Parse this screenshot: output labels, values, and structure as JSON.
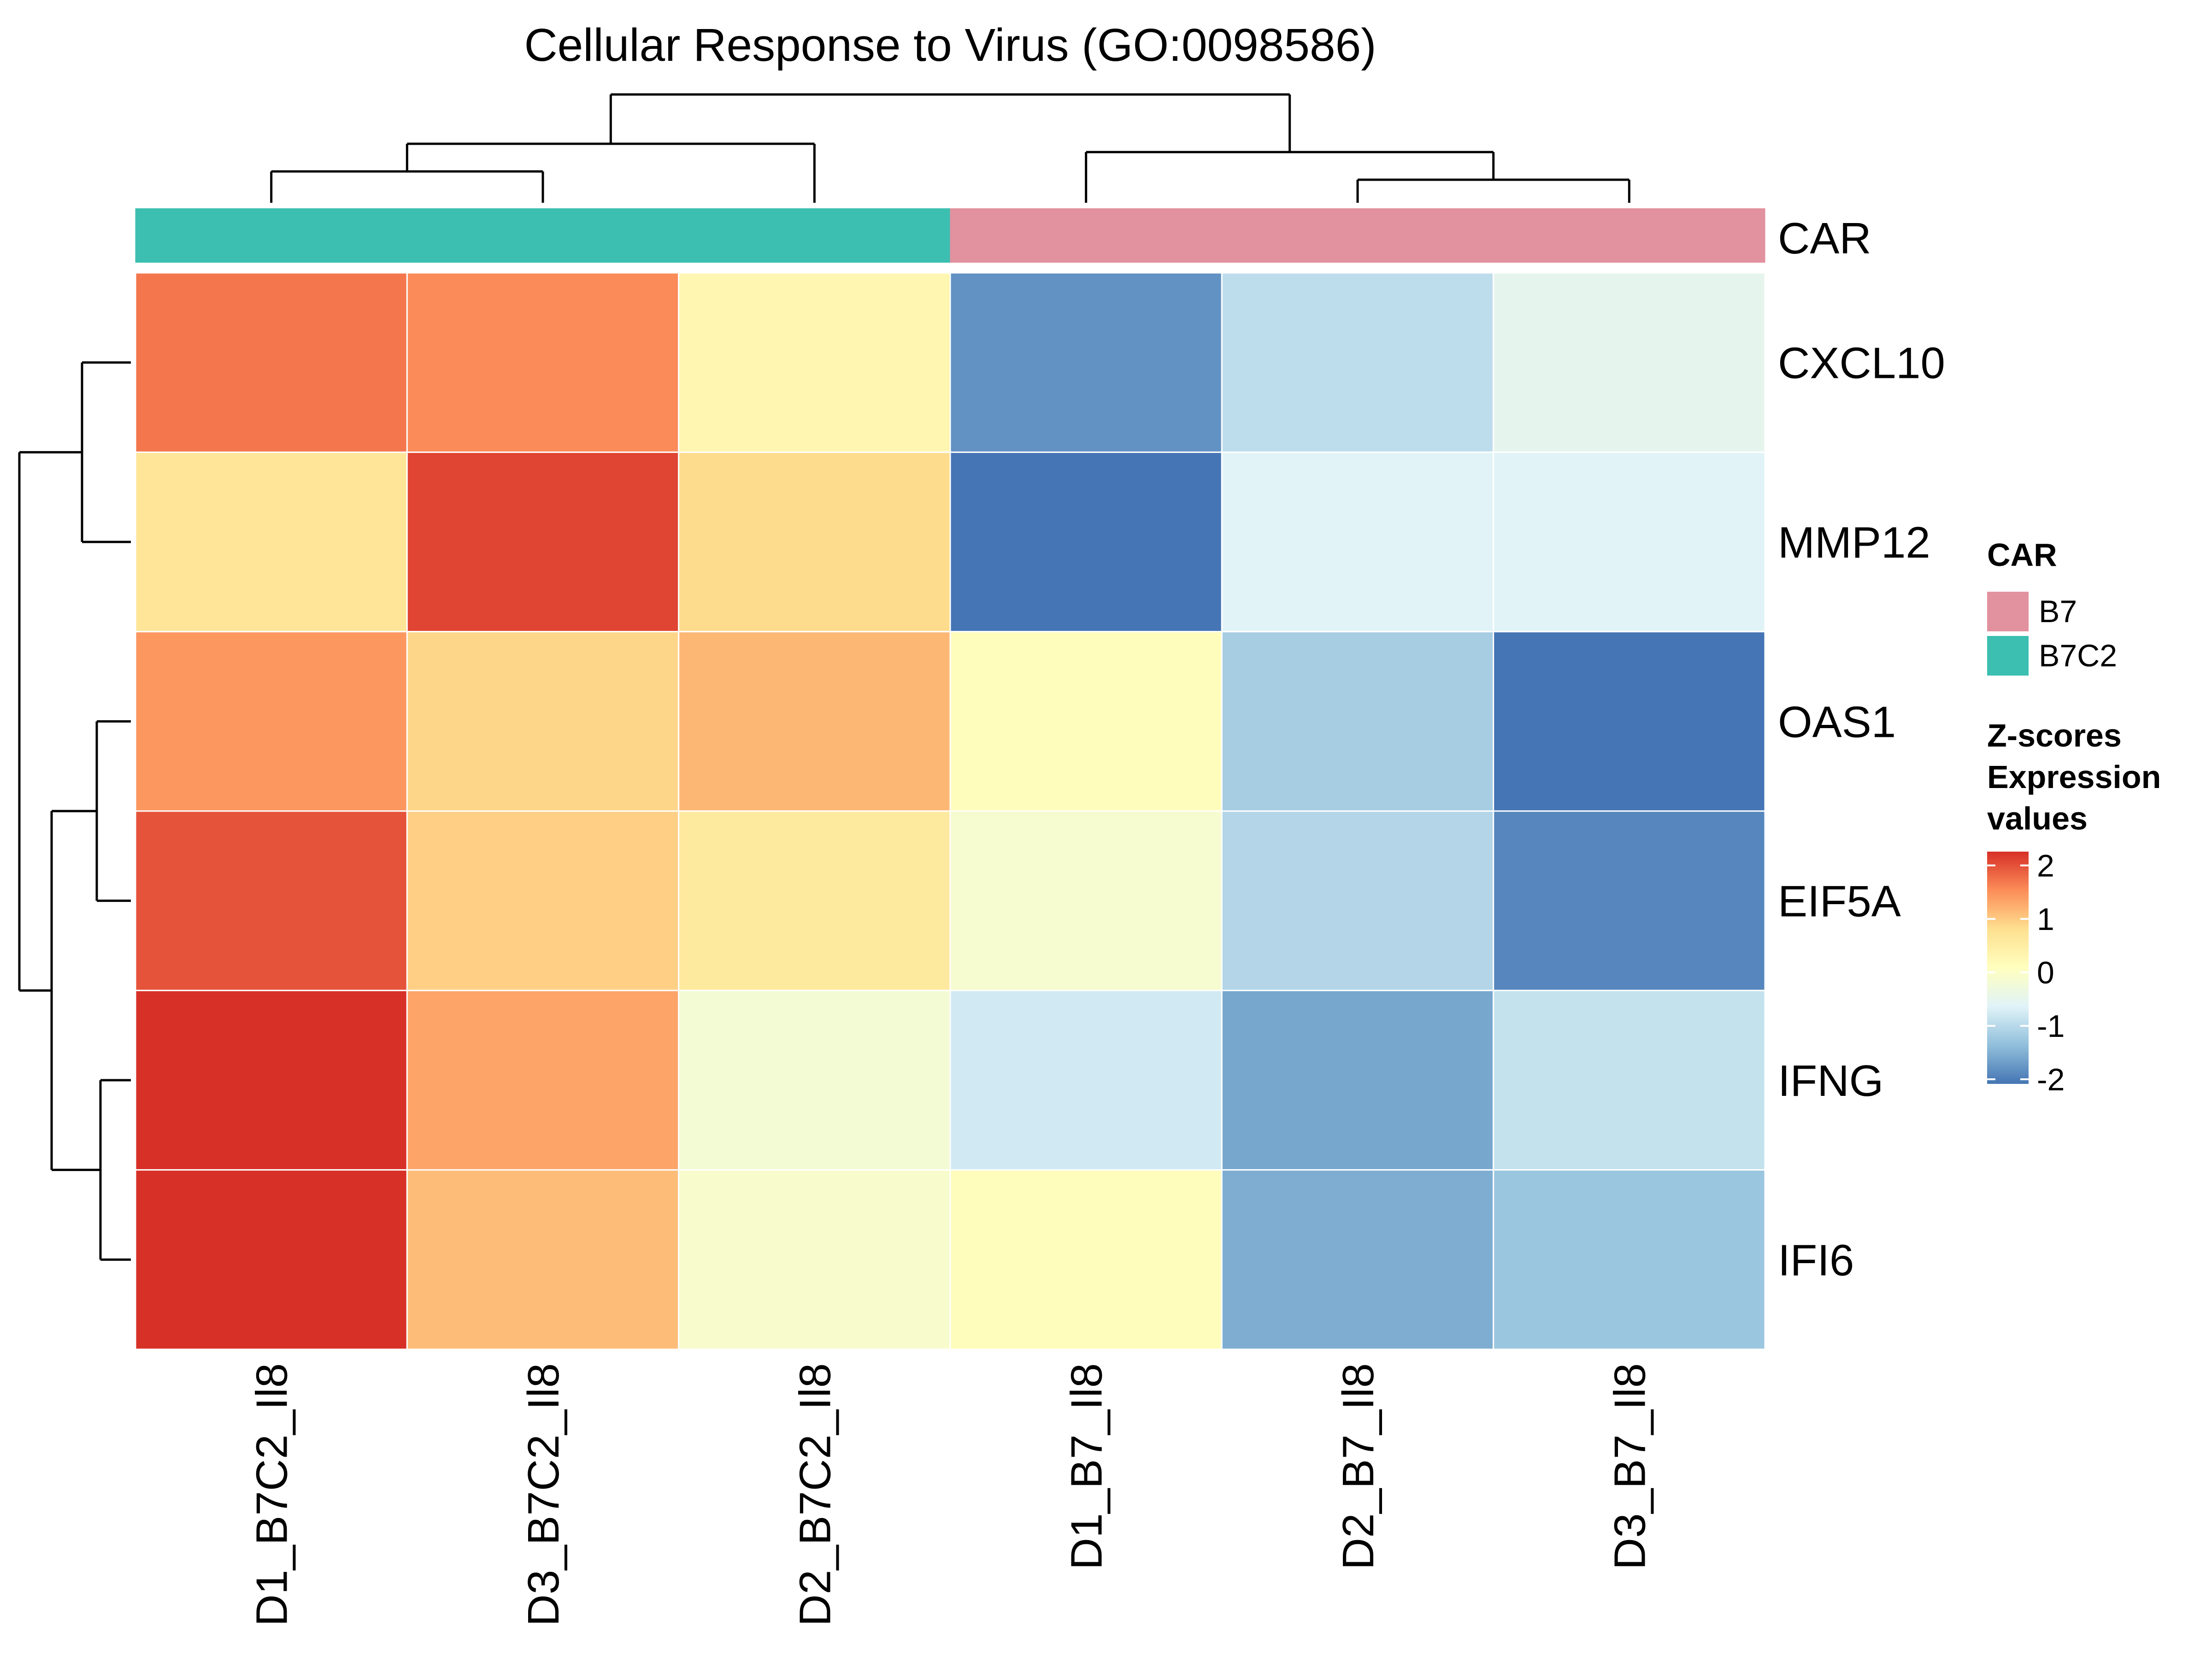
{
  "chart_data": {
    "type": "heatmap",
    "title": "Cellular Response to Virus (GO:0098586)",
    "rows": [
      "CXCL10",
      "MMP12",
      "OAS1",
      "EIF5A",
      "IFNG",
      "IFI6"
    ],
    "columns": [
      "D1_B7C2_Il8",
      "D3_B7C2_Il8",
      "D2_B7C2_Il8",
      "D1_B7_Il8",
      "D2_B7_Il8",
      "D3_B7_Il8"
    ],
    "values": [
      [
        1.5,
        1.35,
        0.2,
        -1.75,
        -0.95,
        -0.55
      ],
      [
        0.55,
        1.85,
        0.7,
        -2.0,
        -0.65,
        -0.65
      ],
      [
        1.25,
        0.75,
        1.0,
        0.05,
        -1.15,
        -2.0
      ],
      [
        1.75,
        0.8,
        0.45,
        -0.2,
        -1.05,
        -1.85
      ],
      [
        2.0,
        1.15,
        -0.25,
        -0.8,
        -1.55,
        -0.9
      ],
      [
        2.0,
        0.95,
        -0.15,
        0.05,
        -1.5,
        -1.25
      ]
    ],
    "annotation": {
      "name": "CAR",
      "values": [
        "B7C2",
        "B7C2",
        "B7C2",
        "B7",
        "B7",
        "B7"
      ],
      "legend": [
        {
          "label": "B7",
          "color": "#e2919f"
        },
        {
          "label": "B7C2",
          "color": "#3cbfb1"
        }
      ]
    },
    "color_scale": {
      "title_lines": [
        "Z-scores",
        "Expression",
        "values"
      ],
      "min": -2,
      "max": 2,
      "ticks": [
        2,
        1,
        0,
        -1,
        -2
      ],
      "colors": [
        "#4575b4",
        "#91bfdb",
        "#e0f3f8",
        "#ffffbf",
        "#fee090",
        "#fc8d59",
        "#d73027"
      ]
    },
    "legend_position": "right",
    "row_dendrogram": true,
    "column_dendrogram": true
  }
}
